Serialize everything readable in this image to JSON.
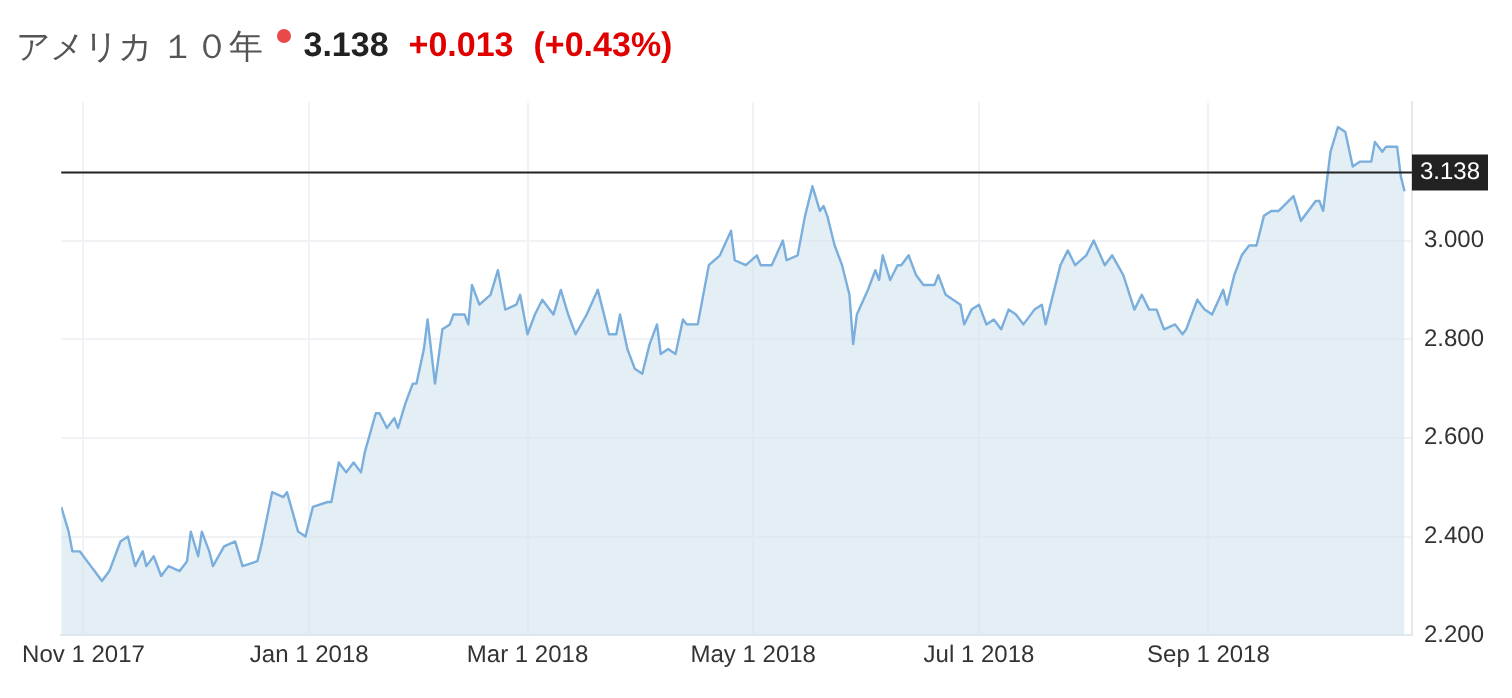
{
  "chart_data": {
    "type": "area",
    "title": "アメリカ １０年",
    "subtitle": "3.138",
    "annotations": [
      "+0.013",
      "(+0.43%)"
    ],
    "x": [
      "2017-10-26",
      "2017-10-28",
      "2017-10-29",
      "2017-10-31",
      "2017-11-03",
      "2017-11-04",
      "2017-11-06",
      "2017-11-08",
      "2017-11-11",
      "2017-11-13",
      "2017-11-15",
      "2017-11-17",
      "2017-11-18",
      "2017-11-20",
      "2017-11-22",
      "2017-11-24",
      "2017-11-27",
      "2017-11-29",
      "2017-11-30",
      "2017-12-02",
      "2017-12-03",
      "2017-12-05",
      "2017-12-06",
      "2017-12-09",
      "2017-12-12",
      "2017-12-14",
      "2017-12-18",
      "2017-12-19",
      "2017-12-22",
      "2017-12-25",
      "2017-12-26",
      "2017-12-29",
      "2017-12-31",
      "2018-01-02",
      "2018-01-06",
      "2018-01-07",
      "2018-01-09",
      "2018-01-11",
      "2018-01-13",
      "2018-01-15",
      "2018-01-16",
      "2018-01-19",
      "2018-01-20",
      "2018-01-22",
      "2018-01-24",
      "2018-01-25",
      "2018-01-27",
      "2018-01-29",
      "2018-01-30",
      "2018-02-01",
      "2018-02-02",
      "2018-02-04",
      "2018-02-06",
      "2018-02-08",
      "2018-02-09",
      "2018-02-12",
      "2018-02-13",
      "2018-02-14",
      "2018-02-16",
      "2018-02-19",
      "2018-02-21",
      "2018-02-23",
      "2018-02-26",
      "2018-02-27",
      "2018-03-01",
      "2018-03-03",
      "2018-03-05",
      "2018-03-08",
      "2018-03-10",
      "2018-03-12",
      "2018-03-14",
      "2018-03-17",
      "2018-03-20",
      "2018-03-23",
      "2018-03-25",
      "2018-03-26",
      "2018-03-28",
      "2018-03-30",
      "2018-04-01",
      "2018-04-03",
      "2018-04-05",
      "2018-04-06",
      "2018-04-08",
      "2018-04-10",
      "2018-04-12",
      "2018-04-13",
      "2018-04-16",
      "2018-04-19",
      "2018-04-22",
      "2018-04-25",
      "2018-04-26",
      "2018-04-29",
      "2018-05-02",
      "2018-05-03",
      "2018-05-06",
      "2018-05-09",
      "2018-05-10",
      "2018-05-13",
      "2018-05-15",
      "2018-05-17",
      "2018-05-19",
      "2018-05-20",
      "2018-05-21",
      "2018-05-23",
      "2018-05-25",
      "2018-05-27",
      "2018-05-28",
      "2018-05-29",
      "2018-06-01",
      "2018-06-03",
      "2018-06-04",
      "2018-06-05",
      "2018-06-07",
      "2018-06-09",
      "2018-06-10",
      "2018-06-12",
      "2018-06-14",
      "2018-06-16",
      "2018-06-19",
      "2018-06-20",
      "2018-06-22",
      "2018-06-24",
      "2018-06-26",
      "2018-06-27",
      "2018-06-29",
      "2018-07-01",
      "2018-07-03",
      "2018-07-05",
      "2018-07-07",
      "2018-07-09",
      "2018-07-11",
      "2018-07-13",
      "2018-07-16",
      "2018-07-18",
      "2018-07-19",
      "2018-07-21",
      "2018-07-23",
      "2018-07-25",
      "2018-07-27",
      "2018-07-30",
      "2018-08-01",
      "2018-08-04",
      "2018-08-06",
      "2018-08-09",
      "2018-08-12",
      "2018-08-14",
      "2018-08-16",
      "2018-08-18",
      "2018-08-20",
      "2018-08-23",
      "2018-08-25",
      "2018-08-26",
      "2018-08-29",
      "2018-08-31",
      "2018-09-02",
      "2018-09-05",
      "2018-09-06",
      "2018-09-08",
      "2018-09-10",
      "2018-09-12",
      "2018-09-14",
      "2018-09-16",
      "2018-09-18",
      "2018-09-20",
      "2018-09-24",
      "2018-09-26",
      "2018-09-30",
      "2018-10-01",
      "2018-10-02",
      "2018-10-04",
      "2018-10-06",
      "2018-10-08",
      "2018-10-10",
      "2018-10-12",
      "2018-10-15",
      "2018-10-16",
      "2018-10-18",
      "2018-10-19",
      "2018-10-22",
      "2018-10-23",
      "2018-10-24"
    ],
    "series": [
      {
        "color": "#7aaedc",
        "values": [
          2.46,
          2.41,
          2.37,
          2.37,
          2.34,
          2.33,
          2.31,
          2.33,
          2.39,
          2.4,
          2.34,
          2.37,
          2.34,
          2.36,
          2.32,
          2.34,
          2.33,
          2.35,
          2.41,
          2.36,
          2.41,
          2.37,
          2.34,
          2.38,
          2.39,
          2.34,
          2.35,
          2.38,
          2.49,
          2.48,
          2.49,
          2.41,
          2.4,
          2.46,
          2.47,
          2.47,
          2.55,
          2.53,
          2.55,
          2.53,
          2.57,
          2.65,
          2.65,
          2.62,
          2.64,
          2.62,
          2.67,
          2.71,
          2.71,
          2.78,
          2.84,
          2.71,
          2.82,
          2.83,
          2.85,
          2.85,
          2.83,
          2.91,
          2.87,
          2.89,
          2.94,
          2.86,
          2.87,
          2.89,
          2.81,
          2.85,
          2.88,
          2.85,
          2.9,
          2.85,
          2.81,
          2.85,
          2.9,
          2.81,
          2.81,
          2.85,
          2.78,
          2.74,
          2.73,
          2.79,
          2.83,
          2.77,
          2.78,
          2.77,
          2.84,
          2.83,
          2.83,
          2.95,
          2.97,
          3.02,
          2.96,
          2.95,
          2.97,
          2.95,
          2.95,
          3.0,
          2.96,
          2.97,
          3.05,
          3.11,
          3.06,
          3.07,
          3.05,
          2.99,
          2.95,
          2.89,
          2.79,
          2.85,
          2.9,
          2.94,
          2.92,
          2.97,
          2.92,
          2.95,
          2.95,
          2.97,
          2.93,
          2.91,
          2.91,
          2.93,
          2.89,
          2.88,
          2.87,
          2.83,
          2.86,
          2.87,
          2.83,
          2.84,
          2.82,
          2.86,
          2.85,
          2.83,
          2.86,
          2.87,
          2.83,
          2.89,
          2.95,
          2.98,
          2.95,
          2.97,
          3.0,
          2.95,
          2.97,
          2.93,
          2.86,
          2.89,
          2.86,
          2.86,
          2.82,
          2.83,
          2.81,
          2.82,
          2.88,
          2.86,
          2.85,
          2.9,
          2.87,
          2.93,
          2.97,
          2.99,
          2.99,
          3.05,
          3.06,
          3.06,
          3.09,
          3.04,
          3.08,
          3.08,
          3.06,
          3.18,
          3.23,
          3.22,
          3.15,
          3.16,
          3.16,
          3.2,
          3.18,
          3.19,
          3.19,
          3.13,
          3.1
        ]
      }
    ],
    "xlim": [
      "2017-10-26",
      "2018-10-26"
    ],
    "xticks": [
      {
        "value": "2017-11-01",
        "label": "Nov 1 2017"
      },
      {
        "value": "2018-01-01",
        "label": "Jan 1 2018"
      },
      {
        "value": "2018-03-01",
        "label": "Mar 1 2018"
      },
      {
        "value": "2018-05-01",
        "label": "May 1 2018"
      },
      {
        "value": "2018-07-01",
        "label": "Jul 1 2018"
      },
      {
        "value": "2018-09-01",
        "label": "Sep 1 2018"
      }
    ],
    "ylim": [
      2.2,
      3.28
    ],
    "yticks": [
      {
        "value": 2.2,
        "label": "2.200"
      },
      {
        "value": 2.4,
        "label": "2.400"
      },
      {
        "value": 2.6,
        "label": "2.600"
      },
      {
        "value": 2.8,
        "label": "2.800"
      },
      {
        "value": 3.0,
        "label": "3.000"
      }
    ],
    "ref_lines": [
      {
        "axis": "y",
        "value": 3.138,
        "label": "3.138",
        "color": "#222222"
      }
    ],
    "grid": true,
    "legend": false,
    "marker": "none"
  }
}
